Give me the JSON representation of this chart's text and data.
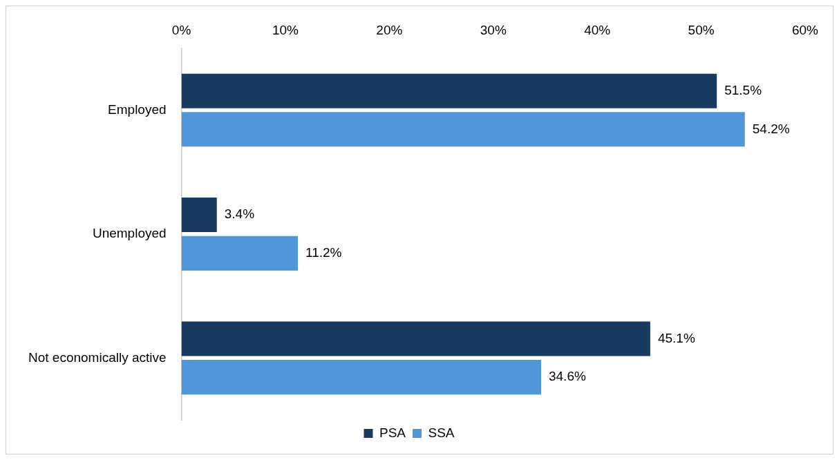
{
  "chart_data": {
    "type": "bar",
    "orientation": "horizontal",
    "categories": [
      "Employed",
      "Unemployed",
      "Not economically active"
    ],
    "series": [
      {
        "name": "PSA",
        "color": "#193b62",
        "values": [
          51.5,
          3.4,
          45.1
        ],
        "value_labels": [
          "51.5%",
          "3.4%",
          "45.1%"
        ]
      },
      {
        "name": "SSA",
        "color": "#5097da",
        "values": [
          54.2,
          11.2,
          34.6
        ],
        "value_labels": [
          "54.2%",
          "11.2%",
          "34.6%"
        ]
      }
    ],
    "xlim": [
      0,
      60
    ],
    "xticks": [
      {
        "value": 0,
        "label": "0%"
      },
      {
        "value": 10,
        "label": "10%"
      },
      {
        "value": 20,
        "label": "20%"
      },
      {
        "value": 30,
        "label": "30%"
      },
      {
        "value": 40,
        "label": "40%"
      },
      {
        "value": 50,
        "label": "50%"
      },
      {
        "value": 60,
        "label": "60%"
      }
    ],
    "grid": false,
    "legend": "bottom"
  }
}
